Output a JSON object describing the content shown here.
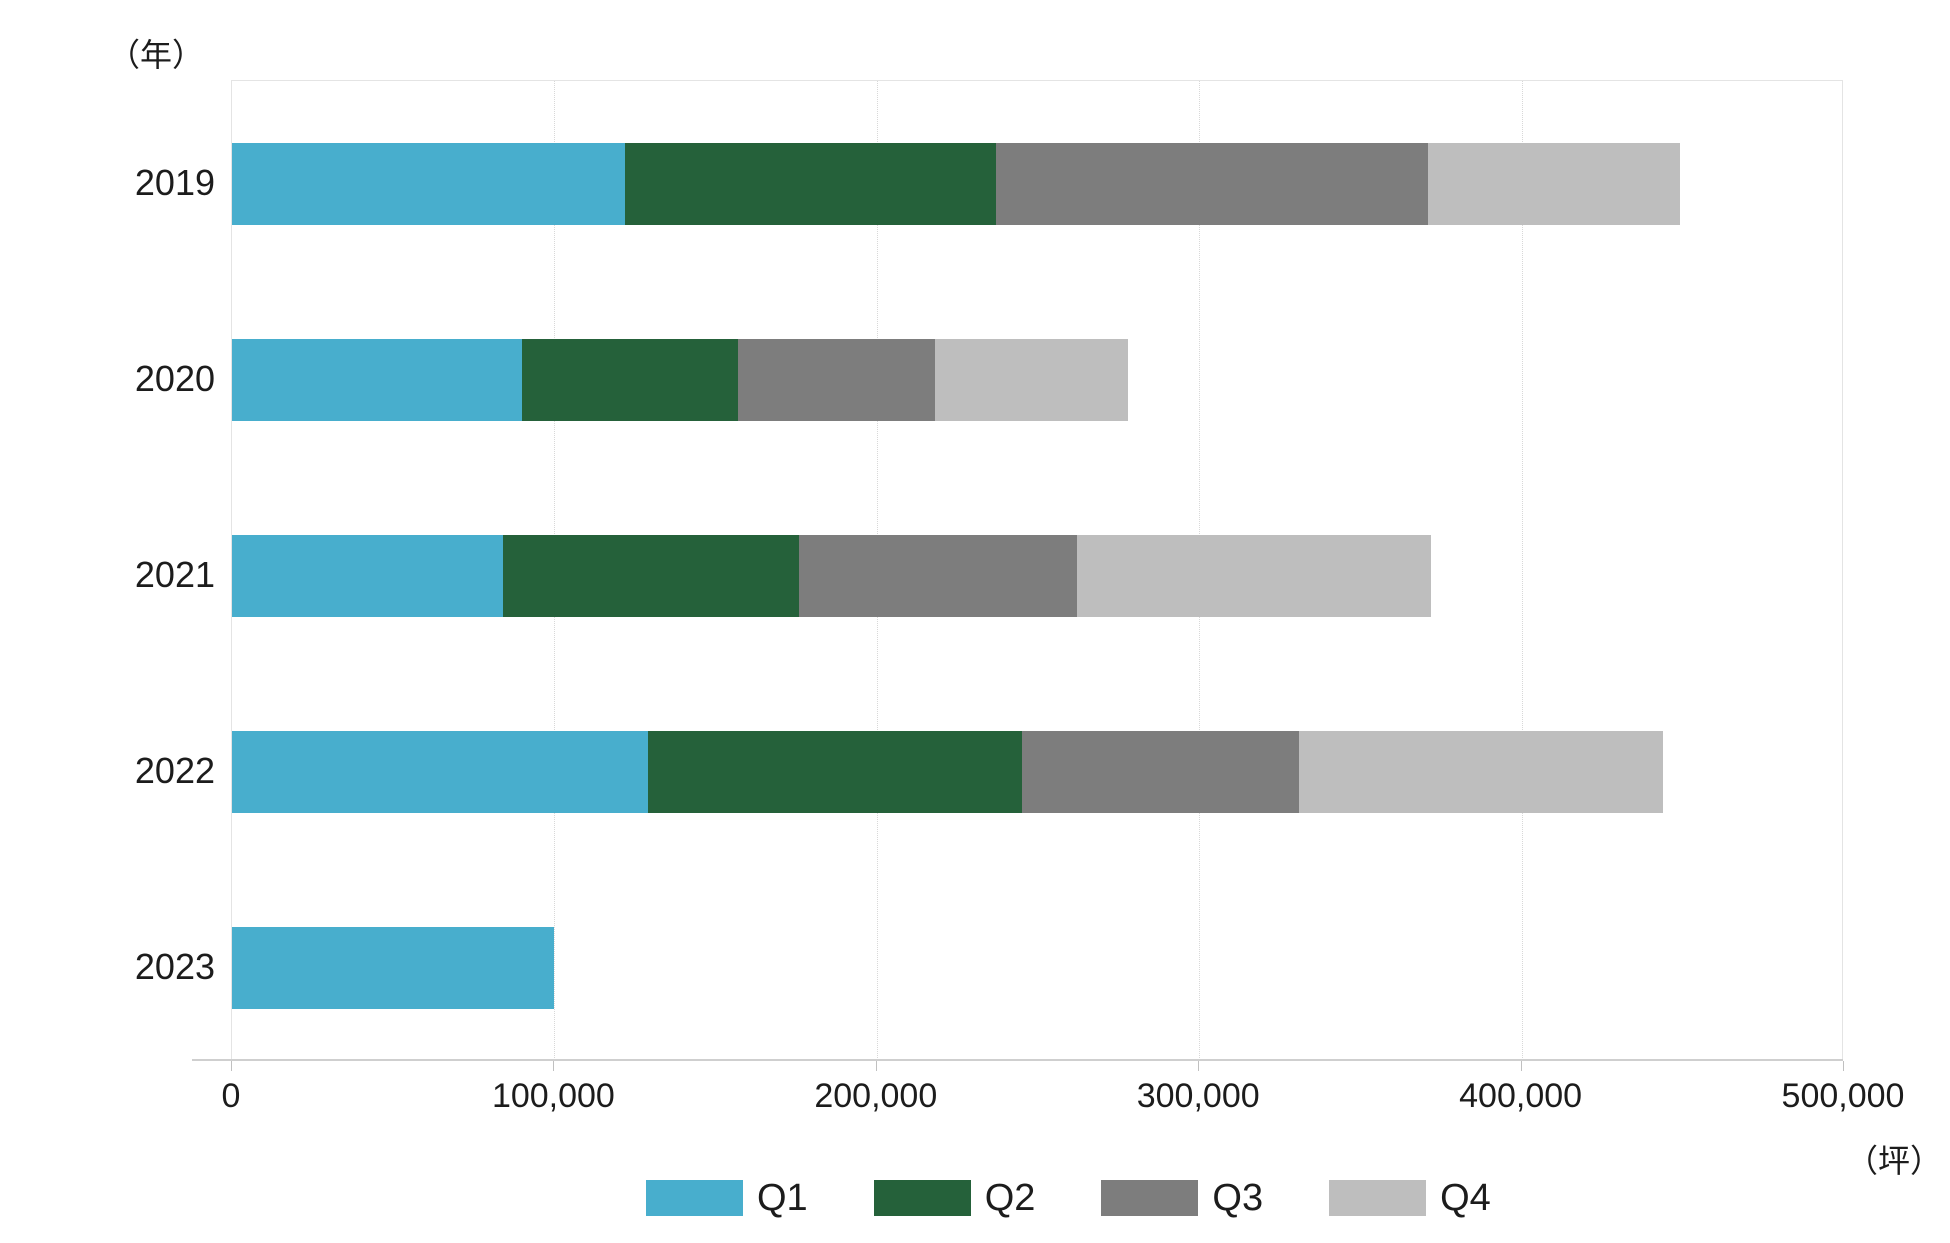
{
  "axes": {
    "y_unit_label": "（年）",
    "x_unit_label": "（坪）",
    "x_tick_labels": [
      "0",
      "100,000",
      "200,000",
      "300,000",
      "400,000",
      "500,000"
    ]
  },
  "chart_data": {
    "type": "bar",
    "orientation": "horizontal",
    "stacked": true,
    "title": "",
    "xlabel": "坪",
    "ylabel": "年",
    "categories": [
      "2019",
      "2020",
      "2021",
      "2022",
      "2023"
    ],
    "series": [
      {
        "name": "Q1",
        "color": "#48aecd",
        "values": [
          122000,
          90000,
          84000,
          129000,
          100000
        ]
      },
      {
        "name": "Q2",
        "color": "#25613a",
        "values": [
          115000,
          67000,
          92000,
          116000,
          0
        ]
      },
      {
        "name": "Q3",
        "color": "#7d7d7d",
        "values": [
          134000,
          61000,
          86000,
          86000,
          0
        ]
      },
      {
        "name": "Q4",
        "color": "#bebebe",
        "values": [
          78000,
          60000,
          110000,
          113000,
          0
        ]
      }
    ],
    "totals": [
      449000,
      278000,
      372000,
      444000,
      100000
    ],
    "xlim": [
      0,
      500000
    ],
    "x_ticks": [
      0,
      100000,
      200000,
      300000,
      400000,
      500000
    ],
    "grid": "vertical-only",
    "legend_position": "bottom",
    "legend_entries": [
      "Q1",
      "Q2",
      "Q3",
      "Q4"
    ]
  }
}
